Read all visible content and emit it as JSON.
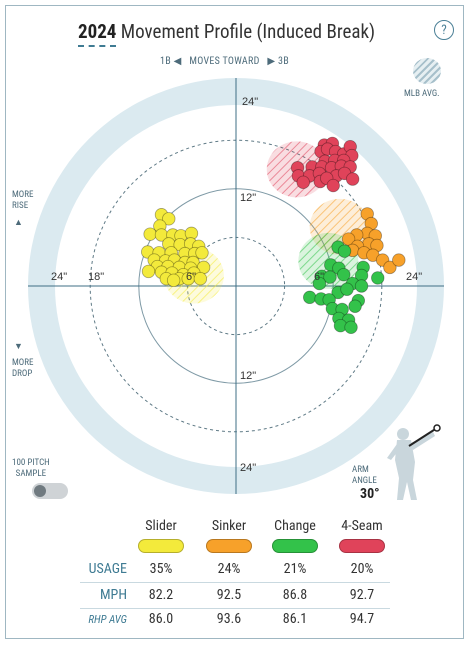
{
  "header": {
    "year": "2024",
    "title": "Movement Profile (Induced Break)",
    "help_icon": "?"
  },
  "direction": {
    "left_label": "1B",
    "middle_label": "MOVES TOWARD",
    "right_label": "3B"
  },
  "legend_mlb": {
    "label": "MLB AVG."
  },
  "side_labels": {
    "rise_line1": "MORE",
    "rise_line2": "RISE",
    "drop_line1": "MORE",
    "drop_line2": "DROP"
  },
  "sample": {
    "line1": "100 PITCH",
    "line2": "SAMPLE",
    "toggle_on": false
  },
  "arm_angle": {
    "line1": "ARM",
    "line2": "ANGLE",
    "value": "30°"
  },
  "colors": {
    "Slider": "#f3ea3b",
    "Sinker": "#f7a12a",
    "Change": "#33c24a",
    "4-Seam": "#e0435a",
    "accent": "#3f7b93"
  },
  "table": {
    "pitches": [
      "Slider",
      "Sinker",
      "Change",
      "4-Seam"
    ],
    "rows": [
      {
        "label": "USAGE",
        "values": [
          "35%",
          "24%",
          "21%",
          "20%"
        ]
      },
      {
        "label": "MPH",
        "values": [
          "82.2",
          "92.5",
          "86.8",
          "92.7"
        ]
      },
      {
        "label": "RHP AVG",
        "values": [
          "86.0",
          "93.6",
          "86.1",
          "94.7"
        ]
      }
    ]
  },
  "chart_data": {
    "type": "scatter",
    "title": "Movement Profile (Induced Break)",
    "radial_ticks": [
      "6\"",
      "12\"",
      "18\"",
      "24\""
    ],
    "x_range": [
      -24,
      24
    ],
    "y_range": [
      -24,
      24
    ],
    "series": [
      {
        "name": "Slider",
        "points": [
          [
            -9.2,
            8.8
          ],
          [
            -8.3,
            8.3
          ],
          [
            -9.4,
            7.4
          ],
          [
            -10.6,
            6.4
          ],
          [
            -9.2,
            6.3
          ],
          [
            -7.8,
            6.3
          ],
          [
            -6.8,
            6.2
          ],
          [
            -5.5,
            6.5
          ],
          [
            -8.3,
            5.2
          ],
          [
            -6.9,
            5.1
          ],
          [
            -5.6,
            5.2
          ],
          [
            -4.6,
            4.9
          ],
          [
            -10.9,
            4.2
          ],
          [
            -9.5,
            4.1
          ],
          [
            -8.0,
            4.1
          ],
          [
            -6.3,
            4.0
          ],
          [
            -5.1,
            4.0
          ],
          [
            -4.2,
            4.1
          ],
          [
            -10.1,
            3.2
          ],
          [
            -8.7,
            3.1
          ],
          [
            -7.6,
            3.2
          ],
          [
            -6.3,
            2.9
          ],
          [
            -5.3,
            2.9
          ],
          [
            -9.7,
            2.4
          ],
          [
            -8.4,
            2.4
          ],
          [
            -7.0,
            2.3
          ],
          [
            -5.6,
            2.2
          ],
          [
            -4.0,
            2.3
          ],
          [
            -10.8,
            1.8
          ],
          [
            -9.2,
            1.7
          ],
          [
            -7.9,
            1.6
          ],
          [
            -6.5,
            1.4
          ],
          [
            -5.2,
            1.6
          ],
          [
            -8.6,
            0.9
          ],
          [
            -7.0,
            0.9
          ],
          [
            -5.9,
            0.9
          ],
          [
            -4.4,
            0.9
          ],
          [
            -7.7,
            0.7
          ]
        ],
        "mlb_avg": [
          -5.2,
          1.3
        ]
      },
      {
        "name": "Sinker",
        "points": [
          [
            16.2,
            8.9
          ],
          [
            16.7,
            7.7
          ],
          [
            16.2,
            6.5
          ],
          [
            14.9,
            6.3
          ],
          [
            17.2,
            6.2
          ],
          [
            13.9,
            5.8
          ],
          [
            16.4,
            5.2
          ],
          [
            15.0,
            4.9
          ],
          [
            17.4,
            5.0
          ],
          [
            14.4,
            4.4
          ],
          [
            15.8,
            4.1
          ],
          [
            16.9,
            3.8
          ],
          [
            18.1,
            3.2
          ],
          [
            19.0,
            2.3
          ],
          [
            20.1,
            3.2
          ]
        ],
        "mlb_avg": [
          12.8,
          7.3
        ]
      },
      {
        "name": "Change",
        "points": [
          [
            12.6,
            4.8
          ],
          [
            13.4,
            4.3
          ],
          [
            11.7,
            2.6
          ],
          [
            12.7,
            2.2
          ],
          [
            15.7,
            2.3
          ],
          [
            10.6,
            1.2
          ],
          [
            11.6,
            1.1
          ],
          [
            13.3,
            1.4
          ],
          [
            15.5,
            1.3
          ],
          [
            17.5,
            1.0
          ],
          [
            14.4,
            0.3
          ],
          [
            15.5,
            0.0
          ],
          [
            10.3,
            0.3
          ],
          [
            12.6,
            -0.8
          ],
          [
            13.7,
            -0.4
          ],
          [
            9.1,
            -1.4
          ],
          [
            10.5,
            -1.6
          ],
          [
            11.5,
            -1.7
          ],
          [
            15.1,
            -1.8
          ],
          [
            11.9,
            -2.8
          ],
          [
            13.1,
            -2.9
          ],
          [
            14.7,
            -2.5
          ],
          [
            12.7,
            -4.0
          ],
          [
            13.9,
            -4.2
          ],
          [
            12.9,
            -4.9
          ],
          [
            14.2,
            -5.1
          ]
        ],
        "mlb_avg": [
          11.4,
          3.1
        ]
      },
      {
        "name": "4-Seam",
        "points": [
          [
            10.9,
            17.4
          ],
          [
            11.9,
            17.6
          ],
          [
            10.5,
            16.6
          ],
          [
            11.3,
            16.9
          ],
          [
            12.3,
            16.6
          ],
          [
            13.3,
            16.3
          ],
          [
            14.1,
            17.2
          ],
          [
            14.3,
            16.1
          ],
          [
            11.0,
            15.4
          ],
          [
            12.2,
            15.5
          ],
          [
            13.3,
            15.5
          ],
          [
            7.6,
            14.6
          ],
          [
            9.4,
            14.7
          ],
          [
            10.6,
            14.7
          ],
          [
            11.8,
            14.6
          ],
          [
            13.0,
            14.8
          ],
          [
            14.1,
            14.7
          ],
          [
            7.7,
            13.6
          ],
          [
            9.1,
            13.6
          ],
          [
            10.3,
            13.9
          ],
          [
            12.4,
            13.6
          ],
          [
            13.4,
            13.9
          ],
          [
            14.4,
            13.2
          ],
          [
            8.3,
            12.8
          ],
          [
            10.4,
            12.9
          ],
          [
            11.2,
            13.3
          ],
          [
            12.0,
            12.4
          ]
        ],
        "mlb_avg": [
          7.5,
          14.4
        ]
      }
    ]
  }
}
